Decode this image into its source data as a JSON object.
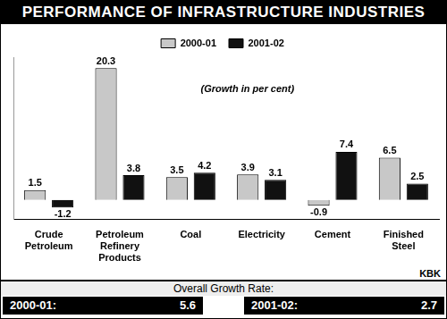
{
  "chart_data": {
    "type": "bar",
    "title": "PERFORMANCE OF INFRASTRUCTURE INDUSTRIES",
    "subtitle": "(Growth in per cent)",
    "categories": [
      "Crude Petroleum",
      "Petroleum Refinery Products",
      "Coal",
      "Electricity",
      "Cement",
      "Finished Steel"
    ],
    "series": [
      {
        "name": "2000-01",
        "color": "#c8c8c8",
        "values": [
          1.5,
          20.3,
          3.5,
          3.9,
          -0.9,
          6.5
        ]
      },
      {
        "name": "2001-02",
        "color": "#111111",
        "values": [
          -1.2,
          3.8,
          4.2,
          3.1,
          7.4,
          2.5
        ]
      }
    ],
    "ylim": [
      -3,
      22
    ],
    "grid": false,
    "legend": "top",
    "data_labels": true,
    "tick_labels": "x",
    "annotations": [
      "KBK"
    ]
  },
  "footer": {
    "title": "Overall Growth Rate:",
    "items": [
      {
        "label": "2000-01:",
        "value": 5.6
      },
      {
        "label": "2001-02:",
        "value": 2.7
      }
    ]
  }
}
